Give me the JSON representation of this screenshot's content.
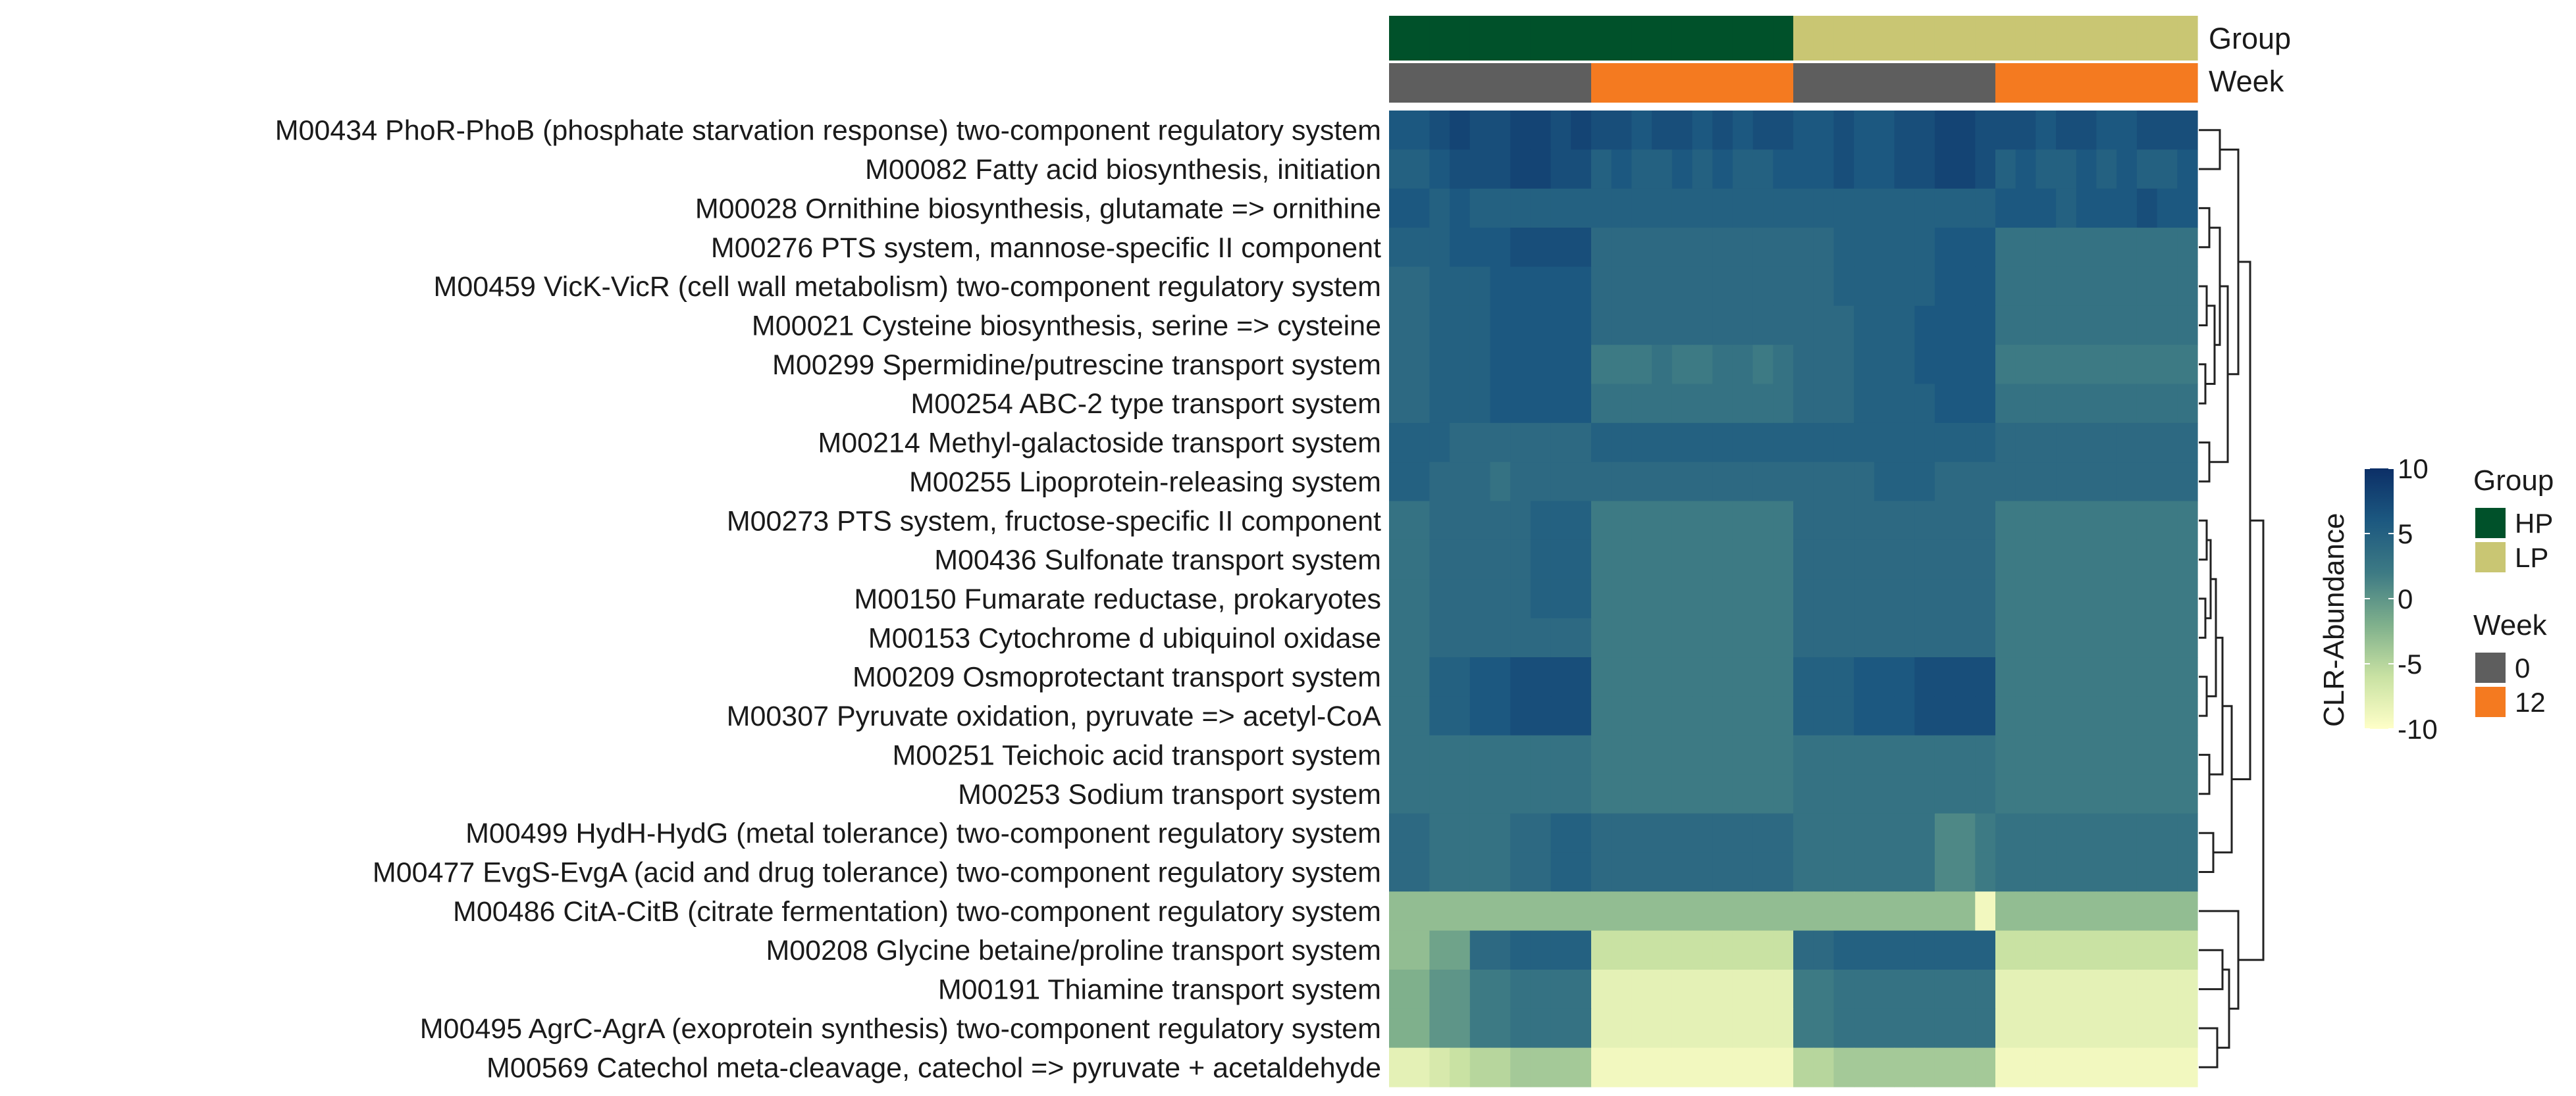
{
  "chart_data": {
    "type": "heatmap",
    "title": "",
    "value_label": "CLR-Abundance",
    "color_scale": {
      "min": -10,
      "max": 10,
      "ticks": [
        10,
        5,
        0,
        -5,
        -10
      ],
      "stops": [
        "#ffffc8",
        "#c9e2a3",
        "#7fb08c",
        "#3d7a84",
        "#1c5880",
        "#0c2f67"
      ]
    },
    "annotations": {
      "group": {
        "title": "Group",
        "label": "Group",
        "levels": [
          {
            "name": "HP",
            "color": "#00512a"
          },
          {
            "name": "LP",
            "color": "#c9c673"
          }
        ],
        "column_levels": [
          "HP",
          "HP",
          "HP",
          "HP",
          "HP",
          "HP",
          "HP",
          "HP",
          "HP",
          "HP",
          "HP",
          "HP",
          "HP",
          "HP",
          "HP",
          "HP",
          "HP",
          "HP",
          "HP",
          "HP",
          "LP",
          "LP",
          "LP",
          "LP",
          "LP",
          "LP",
          "LP",
          "LP",
          "LP",
          "LP",
          "LP",
          "LP",
          "LP",
          "LP",
          "LP",
          "LP",
          "LP",
          "LP",
          "LP",
          "LP"
        ]
      },
      "week": {
        "title": "Week",
        "label": "Week",
        "levels": [
          {
            "name": "0",
            "color": "#5e5e5e"
          },
          {
            "name": "12",
            "color": "#f47a20"
          }
        ],
        "column_levels": [
          "0",
          "0",
          "0",
          "0",
          "0",
          "0",
          "0",
          "0",
          "0",
          "0",
          "12",
          "12",
          "12",
          "12",
          "12",
          "12",
          "12",
          "12",
          "12",
          "12",
          "0",
          "0",
          "0",
          "0",
          "0",
          "0",
          "0",
          "0",
          "0",
          "0",
          "12",
          "12",
          "12",
          "12",
          "12",
          "12",
          "12",
          "12",
          "12",
          "12"
        ]
      }
    },
    "rows": [
      {
        "label": "M00434  PhoR-PhoB (phosphate starvation response) two-component regulatory system",
        "values": [
          6,
          6,
          7,
          8,
          7,
          7,
          8,
          8,
          7,
          8,
          7,
          7,
          6,
          7,
          7,
          6,
          7,
          6,
          7,
          7,
          6,
          6,
          7,
          6,
          6,
          7,
          7,
          8,
          8,
          7,
          7,
          7,
          6,
          7,
          7,
          6,
          6,
          7,
          7,
          7
        ]
      },
      {
        "label": "M00082  Fatty acid biosynthesis, initiation",
        "values": [
          5,
          5,
          6,
          7,
          7,
          7,
          8,
          8,
          7,
          7,
          5,
          6,
          5,
          5,
          6,
          5,
          6,
          5,
          5,
          6,
          6,
          6,
          7,
          6,
          6,
          7,
          7,
          8,
          8,
          7,
          5,
          6,
          5,
          5,
          6,
          5,
          6,
          5,
          5,
          6
        ]
      },
      {
        "label": "M00028  Ornithine biosynthesis, glutamate => ornithine",
        "values": [
          6,
          6,
          5,
          6,
          5,
          5,
          5,
          5,
          5,
          5,
          5,
          5,
          5,
          5,
          5,
          5,
          5,
          5,
          5,
          5,
          5,
          5,
          5,
          5,
          5,
          5,
          5,
          5,
          5,
          5,
          6,
          6,
          6,
          5,
          6,
          6,
          6,
          7,
          6,
          6
        ]
      },
      {
        "label": "M00276  PTS system, mannose-specific II component",
        "values": [
          5,
          5,
          5,
          6,
          6,
          6,
          7,
          7,
          7,
          7,
          4,
          4,
          4,
          4,
          4,
          4,
          4,
          4,
          4,
          4,
          4,
          4,
          5,
          5,
          5,
          5,
          5,
          6,
          6,
          6,
          3,
          3,
          3,
          3,
          3,
          3,
          3,
          3,
          3,
          3
        ]
      },
      {
        "label": "M00459  VicK-VicR (cell wall metabolism) two-component regulatory system",
        "values": [
          4,
          4,
          5,
          5,
          5,
          6,
          6,
          6,
          6,
          6,
          4,
          4,
          4,
          4,
          4,
          4,
          4,
          4,
          4,
          4,
          4,
          4,
          5,
          5,
          5,
          5,
          5,
          6,
          6,
          6,
          3,
          3,
          3,
          3,
          3,
          3,
          3,
          3,
          3,
          3
        ]
      },
      {
        "label": "M00021  Cysteine biosynthesis, serine => cysteine",
        "values": [
          4,
          4,
          5,
          5,
          5,
          6,
          6,
          6,
          6,
          6,
          4,
          4,
          4,
          4,
          4,
          4,
          4,
          4,
          4,
          4,
          4,
          4,
          4,
          5,
          5,
          5,
          6,
          6,
          6,
          6,
          3,
          3,
          3,
          3,
          3,
          3,
          3,
          3,
          3,
          3
        ]
      },
      {
        "label": "M00299  Spermidine/putrescine transport system",
        "values": [
          4,
          4,
          5,
          5,
          5,
          6,
          6,
          6,
          6,
          6,
          2,
          2,
          2,
          3,
          2,
          2,
          3,
          3,
          2,
          3,
          4,
          4,
          4,
          5,
          5,
          5,
          6,
          6,
          6,
          6,
          2,
          2,
          2,
          2,
          2,
          2,
          2,
          2,
          2,
          2
        ]
      },
      {
        "label": "M00254  ABC-2 type transport system",
        "values": [
          4,
          4,
          5,
          5,
          5,
          6,
          6,
          6,
          6,
          6,
          3,
          3,
          3,
          3,
          3,
          3,
          3,
          3,
          3,
          3,
          4,
          4,
          4,
          5,
          5,
          5,
          5,
          6,
          6,
          6,
          3,
          3,
          3,
          3,
          3,
          3,
          3,
          3,
          3,
          3
        ]
      },
      {
        "label": "M00214  Methyl-galactoside transport system",
        "values": [
          5,
          5,
          5,
          4,
          4,
          4,
          4,
          4,
          4,
          4,
          5,
          5,
          5,
          5,
          5,
          5,
          5,
          5,
          5,
          5,
          5,
          5,
          5,
          5,
          5,
          5,
          5,
          5,
          5,
          5,
          4,
          4,
          4,
          4,
          4,
          4,
          4,
          4,
          4,
          4
        ]
      },
      {
        "label": "M00255  Lipoprotein-releasing system",
        "values": [
          5,
          5,
          4,
          4,
          4,
          3,
          4,
          4,
          4,
          4,
          4,
          4,
          4,
          4,
          4,
          4,
          4,
          4,
          4,
          4,
          4,
          4,
          4,
          4,
          5,
          5,
          5,
          4,
          4,
          4,
          4,
          4,
          4,
          4,
          4,
          4,
          4,
          4,
          4,
          4
        ]
      },
      {
        "label": "M00273  PTS system, fructose-specific II component",
        "values": [
          3,
          3,
          4,
          4,
          4,
          4,
          4,
          5,
          5,
          5,
          2,
          2,
          2,
          2,
          2,
          2,
          2,
          2,
          2,
          2,
          4,
          4,
          4,
          4,
          4,
          4,
          4,
          4,
          4,
          4,
          2,
          2,
          2,
          2,
          2,
          2,
          2,
          2,
          2,
          2
        ]
      },
      {
        "label": "M00436  Sulfonate transport system",
        "values": [
          3,
          3,
          4,
          4,
          4,
          4,
          4,
          5,
          5,
          5,
          2,
          2,
          2,
          2,
          2,
          2,
          2,
          2,
          2,
          2,
          4,
          4,
          4,
          4,
          4,
          4,
          4,
          4,
          4,
          4,
          2,
          2,
          2,
          2,
          2,
          2,
          2,
          2,
          2,
          2
        ]
      },
      {
        "label": "M00150  Fumarate reductase, prokaryotes",
        "values": [
          3,
          3,
          4,
          4,
          4,
          4,
          4,
          5,
          5,
          5,
          2,
          2,
          2,
          2,
          2,
          2,
          2,
          2,
          2,
          2,
          4,
          4,
          4,
          4,
          4,
          4,
          4,
          4,
          4,
          4,
          2,
          2,
          2,
          2,
          2,
          2,
          2,
          2,
          2,
          2
        ]
      },
      {
        "label": "M00153  Cytochrome d ubiquinol oxidase",
        "values": [
          3,
          3,
          4,
          4,
          4,
          4,
          4,
          4,
          4,
          4,
          2,
          2,
          2,
          2,
          2,
          2,
          2,
          2,
          2,
          2,
          4,
          4,
          4,
          4,
          4,
          4,
          4,
          4,
          4,
          4,
          2,
          2,
          2,
          2,
          2,
          2,
          2,
          2,
          2,
          2
        ]
      },
      {
        "label": "M00209  Osmoprotectant transport system",
        "values": [
          3,
          3,
          5,
          5,
          6,
          6,
          7,
          7,
          7,
          7,
          2,
          2,
          2,
          2,
          2,
          2,
          2,
          2,
          2,
          2,
          5,
          5,
          5,
          6,
          6,
          6,
          7,
          7,
          7,
          7,
          2,
          2,
          2,
          2,
          2,
          2,
          2,
          2,
          2,
          2
        ]
      },
      {
        "label": "M00307  Pyruvate oxidation, pyruvate => acetyl-CoA",
        "values": [
          3,
          3,
          5,
          5,
          6,
          6,
          7,
          7,
          7,
          7,
          2,
          2,
          2,
          2,
          2,
          2,
          2,
          2,
          2,
          2,
          5,
          5,
          5,
          6,
          6,
          6,
          7,
          7,
          7,
          7,
          2,
          2,
          2,
          2,
          2,
          2,
          2,
          2,
          2,
          2
        ]
      },
      {
        "label": "M00251  Teichoic acid transport system",
        "values": [
          3,
          3,
          3,
          3,
          3,
          3,
          3,
          3,
          3,
          3,
          2,
          2,
          2,
          2,
          2,
          2,
          2,
          2,
          2,
          2,
          3,
          3,
          3,
          3,
          3,
          3,
          3,
          3,
          3,
          3,
          2,
          2,
          2,
          2,
          2,
          2,
          2,
          2,
          2,
          2
        ]
      },
      {
        "label": "M00253  Sodium transport system",
        "values": [
          3,
          3,
          3,
          3,
          3,
          3,
          3,
          3,
          3,
          3,
          2,
          2,
          2,
          2,
          2,
          2,
          2,
          2,
          2,
          2,
          3,
          3,
          3,
          3,
          3,
          3,
          3,
          3,
          3,
          3,
          2,
          2,
          2,
          2,
          2,
          2,
          2,
          2,
          2,
          2
        ]
      },
      {
        "label": "M00499  HydH-HydG (metal tolerance) two-component regulatory system",
        "values": [
          4,
          4,
          3,
          3,
          3,
          3,
          4,
          4,
          5,
          5,
          4,
          4,
          4,
          4,
          4,
          4,
          4,
          4,
          4,
          4,
          3,
          3,
          3,
          3,
          3,
          3,
          3,
          1,
          1,
          2,
          3,
          3,
          3,
          3,
          3,
          3,
          3,
          3,
          3,
          3
        ]
      },
      {
        "label": "M00477  EvgS-EvgA (acid and drug tolerance) two-component regulatory system",
        "values": [
          4,
          4,
          3,
          3,
          3,
          3,
          4,
          4,
          5,
          5,
          4,
          4,
          4,
          4,
          4,
          4,
          4,
          4,
          4,
          4,
          3,
          3,
          3,
          3,
          3,
          3,
          3,
          1,
          1,
          2,
          3,
          3,
          3,
          3,
          3,
          3,
          3,
          3,
          3,
          3
        ]
      },
      {
        "label": "M00486  CitA-CitB (citrate fermentation) two-component regulatory system",
        "values": [
          -3,
          -3,
          -3,
          -3,
          -3,
          -3,
          -3,
          -3,
          -3,
          -3,
          -3,
          -3,
          -3,
          -3,
          -3,
          -3,
          -3,
          -3,
          -3,
          -3,
          -3,
          -3,
          -3,
          -3,
          -3,
          -3,
          -3,
          -3,
          -3,
          -9,
          -3,
          -3,
          -3,
          -3,
          -3,
          -3,
          -3,
          -3,
          -3,
          -3
        ]
      },
      {
        "label": "M00208  Glycine betaine/proline transport system",
        "values": [
          -3,
          -3,
          -1,
          -1,
          4,
          4,
          5,
          5,
          5,
          5,
          -6,
          -6,
          -6,
          -6,
          -6,
          -6,
          -6,
          -6,
          -6,
          -6,
          4,
          4,
          5,
          5,
          5,
          5,
          5,
          5,
          5,
          5,
          -6,
          -6,
          -6,
          -6,
          -6,
          -6,
          -6,
          -6,
          -6,
          -6
        ]
      },
      {
        "label": "M00191  Thiamine transport system",
        "values": [
          -2,
          -2,
          0,
          0,
          2,
          2,
          3,
          3,
          3,
          3,
          -8,
          -8,
          -8,
          -8,
          -8,
          -8,
          -8,
          -8,
          -8,
          -8,
          2,
          2,
          3,
          3,
          3,
          3,
          3,
          3,
          3,
          3,
          -8,
          -8,
          -8,
          -8,
          -8,
          -8,
          -8,
          -8,
          -8,
          -8
        ]
      },
      {
        "label": "M00495  AgrC-AgrA (exoprotein synthesis) two-component regulatory system",
        "values": [
          -2,
          -2,
          0,
          0,
          2,
          2,
          3,
          3,
          3,
          3,
          -8,
          -8,
          -8,
          -8,
          -8,
          -8,
          -8,
          -8,
          -8,
          -8,
          2,
          2,
          3,
          3,
          3,
          3,
          3,
          3,
          3,
          3,
          -8,
          -8,
          -8,
          -8,
          -8,
          -8,
          -8,
          -8,
          -8,
          -8
        ]
      },
      {
        "label": "M00569  Catechol meta-cleavage, catechol => pyruvate + acetaldehyde",
        "values": [
          -8,
          -8,
          -7,
          -6,
          -5,
          -5,
          -4,
          -4,
          -4,
          -4,
          -9,
          -9,
          -9,
          -9,
          -9,
          -9,
          -9,
          -9,
          -9,
          -9,
          -5,
          -5,
          -4,
          -4,
          -4,
          -4,
          -4,
          -4,
          -4,
          -4,
          -9,
          -9,
          -9,
          -9,
          -9,
          -9,
          -9,
          -9,
          -9,
          -9
        ]
      }
    ]
  }
}
